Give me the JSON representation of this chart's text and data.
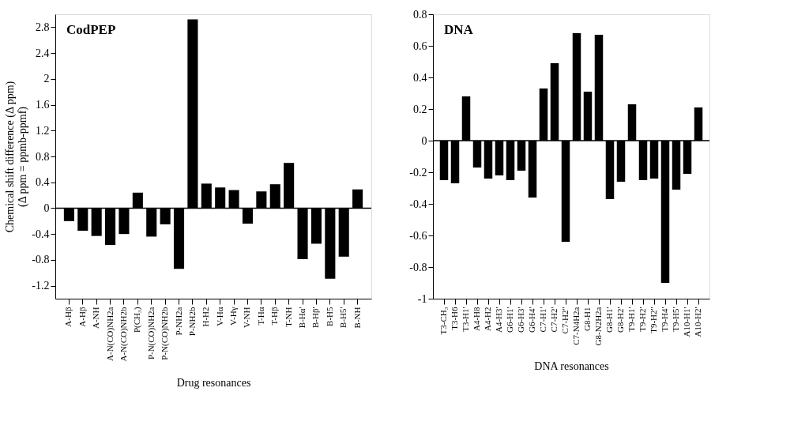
{
  "chart_data": [
    {
      "type": "bar",
      "title": "CodPEP",
      "xlabel": "Drug resonances",
      "ylabel": "Chemical shift difference (Δ ppm)\n(Δ ppm = ppmb-ppmf)",
      "categories": [
        "A-Hβ",
        "A-Hβ",
        "A-NH",
        "A-N(CO)NH2a",
        "A-N(CO)NH2b",
        "P(CH₃)",
        "P-N(CO)NH2a",
        "P-N(CO)NH2b",
        "P-NH2a",
        "P-NH2b",
        "H-H2",
        "V-Hα",
        "V-Hγ",
        "V-NH",
        "T-Hα",
        "T-Hβ",
        "T-NH",
        "B-Hα'",
        "B-Hβ'",
        "B-H5",
        "B-H5'",
        "B-NH"
      ],
      "values": [
        -0.2,
        -0.35,
        -0.43,
        -0.57,
        -0.4,
        0.24,
        -0.44,
        -0.25,
        -0.94,
        2.92,
        0.38,
        0.32,
        0.28,
        -0.24,
        0.26,
        0.37,
        0.7,
        -0.79,
        -0.55,
        -1.09,
        -0.75,
        0.29
      ],
      "color": "#000000",
      "ylim": [
        -1.4,
        3.0
      ],
      "yticks": [
        -1.2,
        -0.8,
        -0.4,
        0,
        0.4,
        0.8,
        1.2,
        1.6,
        2,
        2.4,
        2.8
      ],
      "grid": false,
      "ref_lines": [
        {
          "axis": "y",
          "value": 0,
          "color": "#000000"
        }
      ]
    },
    {
      "type": "bar",
      "title": "DNA",
      "xlabel": "DNA resonances",
      "categories": [
        "T3-CH₃",
        "T3-H6",
        "T3-H1'",
        "A4-H8",
        "A4-H2",
        "A4-H3'",
        "G6-H1'",
        "G6-H3'",
        "G6-H4'",
        "C7-H1'",
        "C7-H2'",
        "C7-H2''",
        "C7-N4H2a",
        "G8-H1",
        "G8-N2H2a",
        "G8-H1'",
        "G8-H2'",
        "T9-H1'",
        "T9-H2'",
        "T9-H2''",
        "T9-H4'",
        "T9-H5'",
        "A10-H1'",
        "A10-H2'"
      ],
      "values": [
        -0.25,
        -0.27,
        0.28,
        -0.17,
        -0.24,
        -0.22,
        -0.25,
        -0.19,
        -0.36,
        0.33,
        0.49,
        -0.64,
        0.68,
        0.31,
        0.67,
        -0.37,
        -0.26,
        0.23,
        -0.25,
        -0.24,
        -0.9,
        -0.31,
        -0.21,
        0.21
      ],
      "color": "#000000",
      "ylim": [
        -1,
        0.8
      ],
      "yticks": [
        -1,
        -0.8,
        -0.6,
        -0.4,
        -0.2,
        0,
        0.2,
        0.4,
        0.6,
        0.8
      ],
      "grid": false,
      "ref_lines": [
        {
          "axis": "y",
          "value": 0,
          "color": "#000000"
        }
      ]
    }
  ]
}
